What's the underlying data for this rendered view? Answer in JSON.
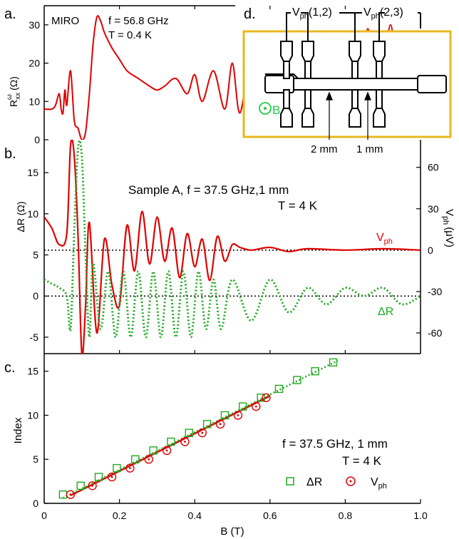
{
  "figure": {
    "panel_a": {
      "label": "a.",
      "title": "MIRO",
      "text_line1": "f = 56.8 GHz",
      "text_line2": "T = 0.4 K",
      "ylabel_main": "R",
      "ylabel_sup": "ω",
      "ylabel_sub": "xx",
      "ylabel_unit": "(Ω)",
      "line_color": "#e00000"
    },
    "panel_b": {
      "label": "b.",
      "text_line1": "Sample A, f = 37.5 GHz,1 mm",
      "text_line2": "T = 4 K",
      "ylabel_left": "ΔR (Ω)",
      "ylabel_right_main": "V",
      "ylabel_right_sub": "ph",
      "ylabel_right_unit": "(μV)",
      "series_label_vph": "V",
      "series_label_vph_sub": "ph",
      "series_label_dr": "ΔR",
      "vph_color": "#e00000",
      "dr_color": "#22aa22"
    },
    "panel_c": {
      "label": "c.",
      "text_line1": "f = 37.5 GHz, 1 mm",
      "text_line2": "T = 4 K",
      "ylabel": "Index",
      "xlabel": "B (T)",
      "legend_dr": "ΔR",
      "legend_vph": "V",
      "legend_vph_sub": "ph"
    },
    "panel_d": {
      "label": "d.",
      "probe_left_main": "V",
      "probe_left_sub": "ph",
      "probe_left_idx": "(1,2)",
      "probe_right_main": "V",
      "probe_right_sub": "ph",
      "probe_right_idx": "(2,3)",
      "field_label": "B",
      "dim_left": "2 mm",
      "dim_right": "1 mm",
      "border_color": "#e8b820",
      "field_color": "#22cc44"
    }
  },
  "chart_data": [
    {
      "type": "line",
      "panel": "a",
      "title": "MIRO",
      "ylabel": "R_xx^ω (Ω)",
      "xlim": [
        0,
        1.0
      ],
      "ylim": [
        0,
        35
      ],
      "yticks": [
        0,
        10,
        20,
        30
      ],
      "series": [
        {
          "x": [
            0.0,
            0.02,
            0.03,
            0.04,
            0.045,
            0.05,
            0.055,
            0.06,
            0.07,
            0.08,
            0.09,
            0.1,
            0.11,
            0.12,
            0.13,
            0.14,
            0.15,
            0.16,
            0.18,
            0.2,
            0.22,
            0.25,
            0.28,
            0.3,
            0.32,
            0.35,
            0.38,
            0.4,
            0.42,
            0.45,
            0.48,
            0.5,
            0.52,
            0.55,
            0.57,
            0.6,
            0.62,
            0.65,
            0.67,
            0.7,
            0.72,
            0.75,
            0.77,
            0.8,
            0.83,
            0.86,
            0.89,
            0.92,
            0.95,
            0.98,
            1.0
          ],
          "y": [
            8,
            8,
            9,
            12,
            8,
            7,
            13,
            9,
            18,
            5,
            3,
            0,
            2,
            12,
            25,
            32,
            31,
            28,
            24,
            21,
            18,
            16,
            14,
            13,
            14,
            16,
            12,
            17,
            10,
            18,
            8,
            20,
            7,
            22,
            6,
            23,
            5,
            25,
            4,
            26,
            4,
            27,
            4,
            28,
            4,
            29,
            4,
            30,
            4,
            4,
            28
          ]
        }
      ]
    },
    {
      "type": "line",
      "panel": "b",
      "ylabel_left": "ΔR (Ω)",
      "ylabel_right": "V_ph (μV)",
      "xlim": [
        0,
        1.0
      ],
      "ylim_left": [
        -7,
        19
      ],
      "ylim_right": [
        -75,
        80
      ],
      "yticks_left": [
        -5,
        0,
        5,
        10,
        15
      ],
      "yticks_right": [
        -60,
        -30,
        0,
        30,
        60
      ],
      "series": [
        {
          "name": "V_ph",
          "axis": "right",
          "style": "solid",
          "x": [
            0.0,
            0.02,
            0.04,
            0.06,
            0.07,
            0.08,
            0.09,
            0.1,
            0.11,
            0.12,
            0.14,
            0.16,
            0.18,
            0.2,
            0.22,
            0.24,
            0.26,
            0.28,
            0.3,
            0.32,
            0.34,
            0.36,
            0.38,
            0.4,
            0.42,
            0.44,
            0.46,
            0.48,
            0.5,
            0.52,
            0.55,
            0.6,
            0.65,
            0.7,
            0.8,
            0.9,
            1.0
          ],
          "y": [
            24,
            16,
            4,
            12,
            76,
            68,
            10,
            -75,
            -40,
            20,
            -60,
            8,
            -25,
            -40,
            18,
            -15,
            28,
            -10,
            24,
            -8,
            16,
            -20,
            12,
            -12,
            8,
            -22,
            10,
            -8,
            4,
            2,
            0,
            2,
            -1,
            1,
            0,
            1,
            0
          ]
        },
        {
          "name": "ΔR",
          "axis": "left",
          "style": "dotted",
          "x": [
            0.0,
            0.02,
            0.04,
            0.06,
            0.07,
            0.08,
            0.09,
            0.1,
            0.11,
            0.12,
            0.13,
            0.15,
            0.17,
            0.19,
            0.21,
            0.23,
            0.25,
            0.27,
            0.29,
            0.31,
            0.33,
            0.35,
            0.37,
            0.39,
            0.41,
            0.43,
            0.45,
            0.47,
            0.5,
            0.55,
            0.6,
            0.65,
            0.7,
            0.75,
            0.8,
            0.85,
            0.9,
            0.95,
            1.0
          ],
          "y": [
            2,
            1.5,
            1,
            0,
            -4,
            8,
            18,
            17,
            5,
            -5,
            4,
            -4,
            3,
            -5,
            3,
            -5,
            3,
            -5,
            3,
            -5,
            3,
            -5,
            3,
            -5,
            3,
            -4,
            2,
            -4,
            2,
            -3,
            2,
            -2,
            1,
            -1,
            1,
            0,
            1,
            -1,
            0
          ]
        }
      ]
    },
    {
      "type": "scatter",
      "panel": "c",
      "xlabel": "B (T)",
      "ylabel": "Index",
      "xlim": [
        0,
        1.0
      ],
      "ylim": [
        0,
        17
      ],
      "xticks": [
        0,
        0.2,
        0.4,
        0.6,
        0.8,
        1.0
      ],
      "yticks": [
        0,
        5,
        10,
        15
      ],
      "series": [
        {
          "name": "ΔR",
          "marker": "square",
          "x": [
            0.05,
            0.097,
            0.145,
            0.193,
            0.242,
            0.29,
            0.337,
            0.385,
            0.433,
            0.48,
            0.528,
            0.576,
            0.624,
            0.672,
            0.72,
            0.768
          ],
          "y": [
            1,
            2,
            3,
            4,
            5,
            6,
            7,
            8,
            9,
            10,
            11,
            12,
            13,
            14,
            15,
            16
          ]
        },
        {
          "name": "V_ph",
          "marker": "circle",
          "x": [
            0.07,
            0.128,
            0.18,
            0.228,
            0.278,
            0.326,
            0.374,
            0.42,
            0.468,
            0.515,
            0.563,
            0.59
          ],
          "y": [
            1,
            2,
            3,
            4,
            5,
            6,
            7,
            8,
            9,
            10,
            11,
            12
          ]
        }
      ]
    }
  ]
}
